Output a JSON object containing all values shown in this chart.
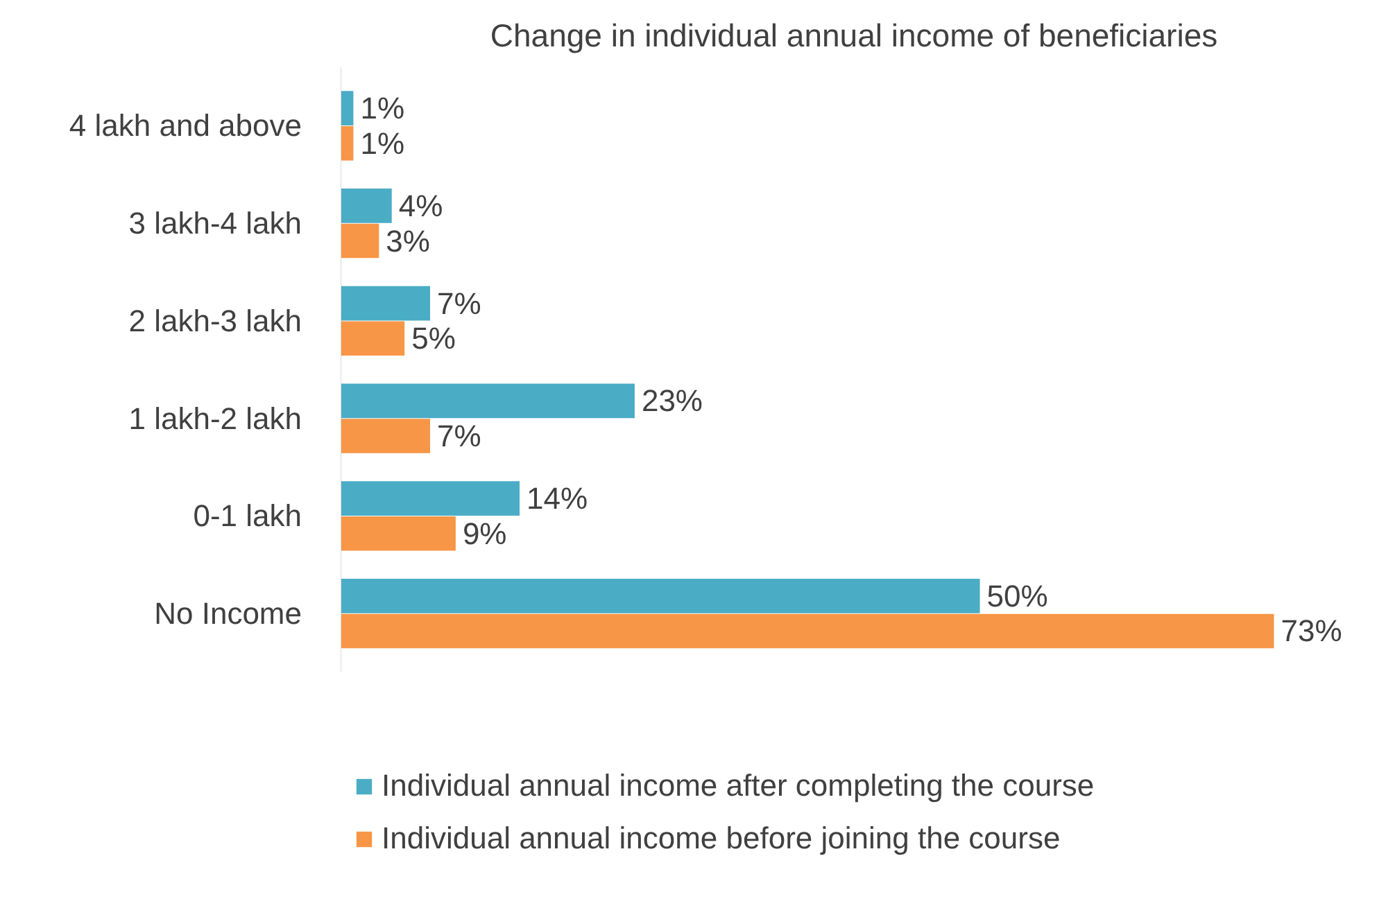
{
  "chart_data": {
    "type": "bar",
    "orientation": "horizontal",
    "title": "Change in individual annual income of beneficiaries",
    "categories": [
      "4 lakh and above",
      "3 lakh-4 lakh",
      "2 lakh-3 lakh",
      "1 lakh-2 lakh",
      "0-1 lakh",
      "No Income"
    ],
    "series": [
      {
        "name": "Individual annual income after completing the course",
        "color": "#4bacc6",
        "values": [
          1,
          4,
          7,
          23,
          14,
          50
        ],
        "value_labels": [
          "1%",
          "4%",
          "7%",
          "23%",
          "14%",
          "50%"
        ]
      },
      {
        "name": "Individual annual income before joining the course",
        "color": "#f79646",
        "values": [
          1,
          3,
          5,
          7,
          9,
          73
        ],
        "value_labels": [
          "1%",
          "3%",
          "5%",
          "7%",
          "9%",
          "73%"
        ]
      }
    ],
    "legend": "bottom",
    "tick_labels": "y"
  }
}
